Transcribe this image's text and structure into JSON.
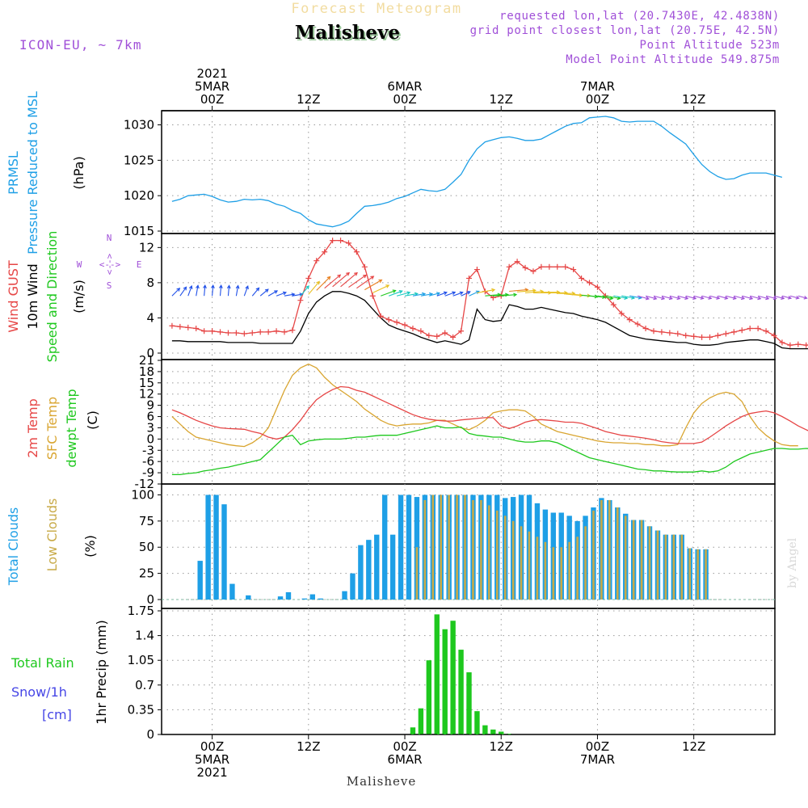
{
  "header": {
    "title_faint": "Forecast Meteogram",
    "station": "Malisheve",
    "model": "ICON-EU, ~ 7km",
    "requested": "requested lon,lat (20.7430E, 42.4838N)",
    "grid_point": "grid point closest lon,lat (20.75E, 42.5N)",
    "point_alt": "Point Altitude 523m",
    "model_alt": "Model Point Altitude 549.875m"
  },
  "footer": {
    "station": "Malisheve",
    "credit": "by Angel"
  },
  "time_axis": {
    "top": [
      {
        "t": 0,
        "lines": [
          "2021",
          "5MAR",
          "00Z"
        ]
      },
      {
        "t": 12,
        "lines": [
          "12Z"
        ]
      },
      {
        "t": 24,
        "lines": [
          "6MAR",
          "00Z"
        ]
      },
      {
        "t": 36,
        "lines": [
          "12Z"
        ]
      },
      {
        "t": 48,
        "lines": [
          "7MAR",
          "00Z"
        ]
      },
      {
        "t": 60,
        "lines": [
          "12Z"
        ]
      }
    ],
    "bottom": [
      {
        "t": 0,
        "lines": [
          "00Z",
          "5MAR",
          "2021"
        ]
      },
      {
        "t": 12,
        "lines": [
          "12Z"
        ]
      },
      {
        "t": 24,
        "lines": [
          "00Z",
          "6MAR"
        ]
      },
      {
        "t": 36,
        "lines": [
          "12Z"
        ]
      },
      {
        "t": 48,
        "lines": [
          "00Z",
          "7MAR"
        ]
      },
      {
        "t": 60,
        "lines": [
          "12Z"
        ]
      }
    ]
  },
  "colors": {
    "pressure": "#1e9fe6",
    "gust": "#e64646",
    "wind": "#000000",
    "temp": "#e64646",
    "sfc": "#d9a530",
    "dew": "#1ec81e",
    "total_clouds": "#1e9fe6",
    "low_clouds": "#c8aa48",
    "rain": "#1ec81e",
    "snow": "#4646e6",
    "purple": "#a050d8"
  },
  "panel_labels": {
    "pressure": [
      "PRMSL",
      "Pressure Reduced to MSL",
      "(hPa)"
    ],
    "wind": [
      "Wind GUST",
      "10m Wind",
      "Speed and Direction",
      "(m/s)"
    ],
    "compass": [
      "N",
      "<-->",
      "S",
      "W",
      "<-->",
      "E"
    ],
    "temp": [
      "2m Temp",
      "SFC Temp",
      "dewpt Temp",
      "(C)"
    ],
    "clouds": [
      "Total Clouds",
      "Low Clouds",
      "(%)"
    ],
    "precip": [
      "Total  Rain",
      "Snow/1h",
      "[cm]",
      "1hr Precip (mm)"
    ]
  },
  "chart_data": [
    {
      "type": "line",
      "name": "pressure",
      "title": "PRMSL Pressure Reduced to MSL",
      "ylabel": "(hPa)",
      "x_start": -5,
      "x_step": 1,
      "ylim": [
        1015,
        1032
      ],
      "yticks": [
        1015,
        1020,
        1025,
        1030
      ],
      "ytick_labels": [
        "1015",
        "1020",
        "1025",
        "1030"
      ],
      "series": [
        {
          "name": "PRMSL",
          "values": [
            1019.2,
            1019.5,
            1020.0,
            1020.1,
            1020.2,
            1019.9,
            1019.4,
            1019.1,
            1019.2,
            1019.5,
            1019.4,
            1019.5,
            1019.3,
            1018.8,
            1018.5,
            1017.9,
            1017.5,
            1016.6,
            1016.0,
            1015.8,
            1015.6,
            1015.9,
            1016.4,
            1017.5,
            1018.5,
            1018.6,
            1018.8,
            1019.1,
            1019.6,
            1019.9,
            1020.4,
            1020.9,
            1020.7,
            1020.6,
            1020.9,
            1021.9,
            1023.0,
            1025.0,
            1026.6,
            1027.6,
            1027.9,
            1028.2,
            1028.3,
            1028.1,
            1027.8,
            1027.8,
            1028.0,
            1028.6,
            1029.2,
            1029.8,
            1030.2,
            1030.3,
            1031.0,
            1031.1,
            1031.2,
            1031.0,
            1030.5,
            1030.4,
            1030.5,
            1030.5,
            1030.5,
            1029.8,
            1028.9,
            1028.1,
            1027.3,
            1025.8,
            1024.4,
            1023.4,
            1022.7,
            1022.3,
            1022.4,
            1022.9,
            1023.2,
            1023.2,
            1023.2,
            1022.9,
            1022.6
          ]
        }
      ]
    },
    {
      "type": "line",
      "name": "wind",
      "title": "Wind GUST / 10m Wind Speed and Direction",
      "ylabel": "(m/s)",
      "x_start": -5,
      "x_step": 1,
      "ylim": [
        0,
        13.5
      ],
      "yticks": [
        0,
        4,
        8,
        12
      ],
      "ytick_labels": [
        "0",
        "4",
        "8",
        "12"
      ],
      "series": [
        {
          "name": "Wind GUST",
          "values": [
            3.1,
            3.0,
            2.9,
            2.8,
            2.5,
            2.5,
            2.4,
            2.3,
            2.3,
            2.2,
            2.3,
            2.4,
            2.4,
            2.5,
            2.4,
            2.6,
            6.0,
            8.5,
            10.5,
            11.5,
            12.8,
            12.8,
            12.5,
            11.5,
            9.8,
            6.5,
            4.2,
            3.8,
            3.5,
            3.2,
            2.8,
            2.5,
            2.0,
            1.9,
            2.3,
            1.8,
            2.5,
            8.5,
            9.5,
            7.0,
            6.3,
            6.5,
            9.8,
            10.4,
            9.7,
            9.3,
            9.8,
            9.8,
            9.8,
            9.8,
            9.5,
            8.5,
            8.0,
            7.5,
            6.5,
            5.5,
            4.5,
            3.8,
            3.3,
            2.8,
            2.5,
            2.4,
            2.3,
            2.2,
            2.0,
            1.9,
            1.8,
            1.8,
            2.0,
            2.2,
            2.4,
            2.6,
            2.8,
            2.8,
            2.5,
            2.0,
            1.2,
            0.9,
            1.0,
            0.9,
            1.0,
            0.8,
            1.2,
            1.5,
            1.6,
            1.5,
            1.4,
            1.4
          ]
        },
        {
          "name": "10m Wind",
          "values": [
            1.4,
            1.4,
            1.3,
            1.3,
            1.3,
            1.3,
            1.3,
            1.2,
            1.2,
            1.2,
            1.2,
            1.1,
            1.1,
            1.1,
            1.1,
            1.1,
            2.5,
            4.5,
            5.8,
            6.5,
            7.0,
            7.0,
            6.8,
            6.5,
            6.0,
            5.0,
            4.0,
            3.2,
            2.8,
            2.5,
            2.2,
            1.8,
            1.5,
            1.2,
            1.4,
            1.2,
            1.0,
            1.5,
            5.0,
            3.8,
            3.6,
            3.7,
            5.5,
            5.3,
            5.0,
            5.0,
            5.2,
            5.0,
            4.8,
            4.6,
            4.5,
            4.2,
            4.0,
            3.8,
            3.5,
            3.0,
            2.5,
            2.0,
            1.8,
            1.6,
            1.5,
            1.4,
            1.3,
            1.2,
            1.2,
            1.0,
            0.9,
            0.9,
            1.0,
            1.2,
            1.3,
            1.4,
            1.5,
            1.5,
            1.3,
            1.1,
            0.6,
            0.5,
            0.5,
            0.5,
            0.5,
            0.5,
            0.8,
            1.0,
            1.0,
            1.0,
            1.0,
            1.0
          ]
        }
      ],
      "direction_series": {
        "name": "Wind direction (deg, from)",
        "values": [
          225,
          215,
          200,
          190,
          185,
          185,
          185,
          185,
          190,
          200,
          220,
          230,
          240,
          250,
          260,
          260,
          220,
          220,
          225,
          230,
          230,
          230,
          235,
          235,
          240,
          245,
          250,
          250,
          255,
          260,
          260,
          260,
          255,
          250,
          250,
          250,
          245,
          245,
          260,
          265,
          265,
          265,
          265,
          265,
          265,
          270,
          270,
          270,
          270,
          275,
          275,
          275,
          275,
          280,
          280,
          280,
          280,
          280,
          285,
          285,
          285,
          285,
          285,
          285,
          285,
          285,
          285,
          285,
          285,
          285,
          285,
          285,
          285,
          285,
          285,
          285,
          285,
          285,
          285
        ]
      }
    },
    {
      "type": "line",
      "name": "temperature",
      "title": "2m Temp / SFC Temp / dewpt Temp",
      "ylabel": "(C)",
      "x_start": -5,
      "x_step": 1,
      "ylim": [
        -12,
        21
      ],
      "yticks": [
        -12,
        -9,
        -6,
        -3,
        0,
        3,
        6,
        9,
        12,
        15,
        18,
        21
      ],
      "ytick_labels": [
        "-12",
        "-9",
        "-6",
        "-3",
        "0",
        "3",
        "6",
        "9",
        "12",
        "15",
        "18",
        "21"
      ],
      "series": [
        {
          "name": "2m Temp",
          "values": [
            7.8,
            7.0,
            6.0,
            5.0,
            4.2,
            3.5,
            3.0,
            2.8,
            2.7,
            2.6,
            2.0,
            1.5,
            0.5,
            0.0,
            0.5,
            2.5,
            5.0,
            8.0,
            10.5,
            12.0,
            13.2,
            14.0,
            13.8,
            13.0,
            12.5,
            11.5,
            10.5,
            9.5,
            8.5,
            7.5,
            6.5,
            5.8,
            5.3,
            5.0,
            4.8,
            4.8,
            5.1,
            5.3,
            5.5,
            5.7,
            5.7,
            3.5,
            2.8,
            3.5,
            4.5,
            5.0,
            5.2,
            5.0,
            4.8,
            4.5,
            4.5,
            4.2,
            3.5,
            2.8,
            2.0,
            1.5,
            1.0,
            0.8,
            0.5,
            0.2,
            -0.2,
            -0.7,
            -1.0,
            -1.2,
            -1.2,
            -1.2,
            -0.8,
            0.5,
            2.0,
            3.5,
            4.8,
            6.0,
            6.8,
            7.2,
            7.5,
            7.0,
            6.0,
            4.8,
            3.5,
            2.5,
            1.5,
            1.0,
            0.7
          ]
        },
        {
          "name": "SFC Temp",
          "values": [
            6.0,
            4.0,
            2.0,
            0.5,
            0.0,
            -0.5,
            -1.0,
            -1.5,
            -1.8,
            -2.0,
            -1.0,
            0.5,
            3.0,
            8.0,
            13.0,
            17.0,
            19.0,
            20.0,
            19.0,
            16.5,
            14.5,
            13.0,
            11.5,
            10.0,
            8.0,
            6.5,
            5.0,
            4.0,
            3.5,
            3.8,
            4.0,
            4.0,
            4.3,
            5.0,
            5.0,
            4.0,
            3.0,
            2.5,
            3.5,
            5.0,
            7.0,
            7.5,
            7.8,
            7.8,
            7.5,
            6.0,
            4.0,
            3.0,
            2.0,
            1.5,
            1.0,
            0.5,
            0.0,
            -0.5,
            -0.8,
            -1.0,
            -1.0,
            -1.2,
            -1.2,
            -1.5,
            -1.5,
            -1.8,
            -1.8,
            -1.5,
            3.0,
            7.0,
            9.5,
            11.0,
            12.0,
            12.5,
            12.0,
            10.0,
            6.0,
            3.0,
            1.0,
            -0.5,
            -1.5,
            -1.8,
            -1.8
          ]
        },
        {
          "name": "dewpt Temp",
          "values": [
            -9.5,
            -9.5,
            -9.2,
            -9.0,
            -8.5,
            -8.2,
            -7.8,
            -7.5,
            -7.0,
            -6.5,
            -6.0,
            -5.5,
            -3.5,
            -1.5,
            0.5,
            1.0,
            -1.5,
            -0.5,
            -0.2,
            0.0,
            0.0,
            0.0,
            0.2,
            0.5,
            0.5,
            0.8,
            1.0,
            1.0,
            1.0,
            1.5,
            2.0,
            2.5,
            3.0,
            3.5,
            3.0,
            3.0,
            3.2,
            1.5,
            1.0,
            0.8,
            0.5,
            0.5,
            0.0,
            -0.5,
            -0.8,
            -0.8,
            -0.5,
            -0.5,
            -1.0,
            -2.0,
            -3.0,
            -4.0,
            -5.0,
            -5.5,
            -6.0,
            -6.5,
            -7.0,
            -7.5,
            -8.0,
            -8.2,
            -8.5,
            -8.5,
            -8.7,
            -8.8,
            -8.8,
            -8.8,
            -8.5,
            -8.8,
            -8.5,
            -7.5,
            -6.0,
            -5.0,
            -4.0,
            -3.5,
            -3.0,
            -2.5,
            -2.5,
            -2.7,
            -2.7,
            -2.5,
            -2.7,
            -2.7,
            -2.8
          ]
        }
      ]
    },
    {
      "type": "bar",
      "name": "clouds",
      "title": "Total Clouds / Low Clouds",
      "ylabel": "(%)",
      "x_start": -1.5,
      "x_step": 1,
      "ylim": [
        0,
        105
      ],
      "yticks": [
        0,
        25,
        50,
        75,
        100
      ],
      "ytick_labels": [
        "0",
        "25",
        "50",
        "75",
        "100"
      ],
      "series": [
        {
          "name": "Total Clouds",
          "values": [
            37,
            100,
            100,
            91,
            15,
            0,
            4,
            0,
            0,
            0,
            3,
            7,
            0,
            1,
            5,
            1,
            0,
            0,
            8,
            25,
            52,
            57,
            62,
            100,
            62,
            100,
            100,
            98,
            100,
            100,
            100,
            100,
            100,
            100,
            100,
            100,
            100,
            100,
            97,
            98,
            100,
            100,
            92,
            86,
            83,
            83,
            80,
            75,
            80,
            88,
            97,
            95,
            88,
            82,
            76,
            76,
            70,
            66,
            62,
            62,
            62,
            49,
            48,
            48
          ]
        },
        {
          "name": "Low Clouds",
          "values": [
            0,
            0,
            0,
            0,
            0,
            0,
            0,
            0,
            0,
            0,
            0,
            0,
            0,
            0,
            0,
            0,
            0,
            0,
            0,
            0,
            0,
            0,
            0,
            0,
            0,
            0,
            0,
            50,
            95,
            100,
            100,
            100,
            100,
            100,
            95,
            95,
            90,
            85,
            80,
            75,
            70,
            65,
            60,
            55,
            50,
            50,
            55,
            60,
            70,
            85,
            95,
            95,
            88,
            80,
            76,
            76,
            70,
            66,
            62,
            62,
            62,
            49,
            48,
            48
          ]
        }
      ]
    },
    {
      "type": "bar",
      "name": "precip",
      "title": "1hr Precip",
      "ylabel": "1hr Precip (mm)",
      "x_start": 25,
      "x_step": 1,
      "ylim": [
        0,
        1.75
      ],
      "yticks": [
        0,
        0.35,
        0.7,
        1.05,
        1.4,
        1.75
      ],
      "ytick_labels": [
        "0",
        "0.35",
        "0.7",
        "1.05",
        "1.4",
        "1.75"
      ],
      "series": [
        {
          "name": "Total Rain",
          "values": [
            0.1,
            0.37,
            1.05,
            1.7,
            1.49,
            1.61,
            1.2,
            0.88,
            0.33,
            0.13,
            0.07,
            0.04,
            0.01
          ]
        },
        {
          "name": "Snow/1h",
          "values": [
            0,
            0,
            0,
            0,
            0,
            0,
            0,
            0,
            0,
            0,
            0,
            0,
            0
          ]
        }
      ]
    }
  ]
}
